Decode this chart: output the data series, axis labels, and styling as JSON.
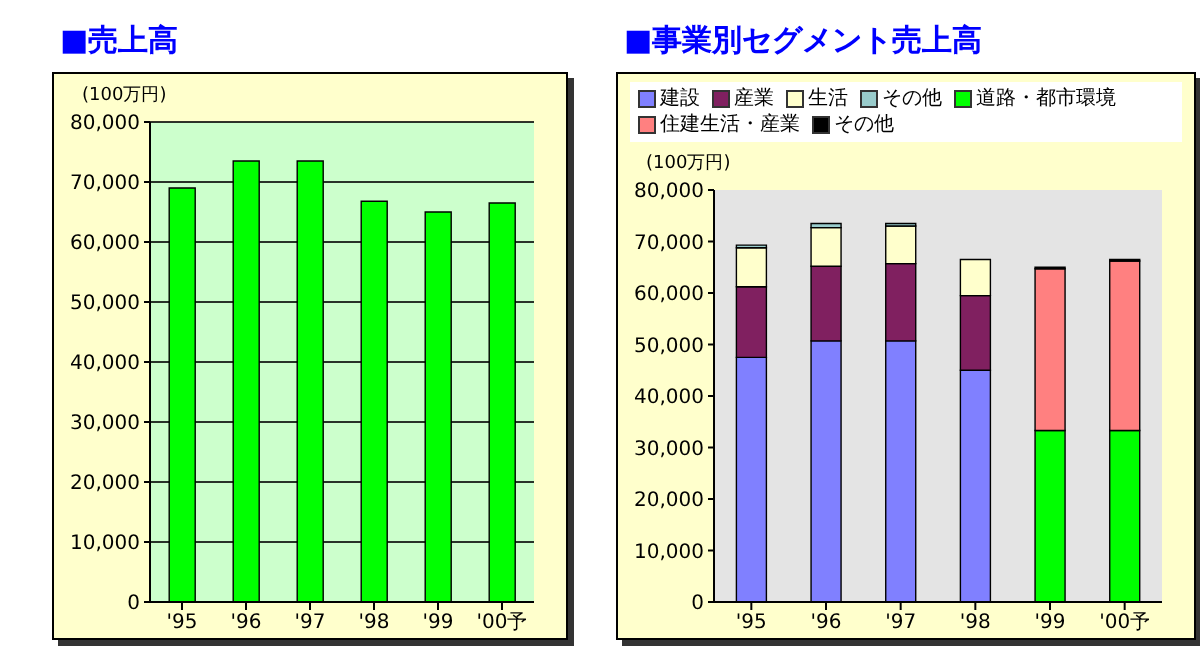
{
  "chart_data": [
    {
      "type": "bar",
      "title": "■売上高",
      "ylabel": "(100万円)",
      "categories": [
        "'95",
        "'96",
        "'97",
        "'98",
        "'99",
        "'00予"
      ],
      "values": [
        69000,
        73500,
        73500,
        66800,
        65000,
        66500
      ],
      "color": "#00ff00",
      "ylim": [
        0,
        80000
      ],
      "yticks": [
        0,
        {
          "value": 10000,
          "label": "10,000"
        },
        {
          "value": 20000,
          "label": "20,000"
        },
        {
          "value": 30000,
          "label": "30,000"
        },
        {
          "value": 40000,
          "label": "40,000"
        },
        {
          "value": 50000,
          "label": "50,000"
        },
        {
          "value": 60000,
          "label": "60,000"
        },
        {
          "value": 70000,
          "label": "70,000"
        },
        {
          "value": 80000,
          "label": "80,000"
        }
      ],
      "grid": "y",
      "legend": false
    },
    {
      "type": "bar",
      "title": "■事業別セグメント売上高",
      "ylabel": "(100万円)",
      "categories": [
        "'95",
        "'96",
        "'97",
        "'98",
        "'99",
        "'00予"
      ],
      "stacked": true,
      "ylim": [
        0,
        80000
      ],
      "yticks": [
        0,
        {
          "value": 10000,
          "label": "10,000"
        },
        {
          "value": 20000,
          "label": "20,000"
        },
        {
          "value": 30000,
          "label": "30,000"
        },
        {
          "value": 40000,
          "label": "40,000"
        },
        {
          "value": 50000,
          "label": "50,000"
        },
        {
          "value": 60000,
          "label": "60,000"
        },
        {
          "value": 70000,
          "label": "70,000"
        },
        {
          "value": 80000,
          "label": "80,000"
        }
      ],
      "grid": false,
      "legend": "top",
      "series": [
        {
          "name": "建設",
          "color": "#8080ff",
          "values": [
            47500,
            50700,
            50700,
            45000,
            null,
            null
          ]
        },
        {
          "name": "産業",
          "color": "#802060",
          "values": [
            13700,
            14500,
            15000,
            14500,
            null,
            null
          ]
        },
        {
          "name": "生活",
          "color": "#ffffcc",
          "values": [
            7600,
            7500,
            7300,
            7000,
            null,
            null
          ]
        },
        {
          "name": "その他",
          "color": "#99cccc",
          "values": [
            500,
            800,
            500,
            null,
            null,
            null
          ]
        },
        {
          "name": "道路・都市環境",
          "color": "#00ff00",
          "values": [
            null,
            null,
            null,
            null,
            33300,
            33300
          ]
        },
        {
          "name": "住建生活・産業",
          "color": "#ff8080",
          "values": [
            null,
            null,
            null,
            null,
            31400,
            32900
          ]
        },
        {
          "name": "その他",
          "color": "#000000",
          "values": [
            null,
            null,
            null,
            null,
            300,
            300
          ]
        }
      ]
    }
  ]
}
